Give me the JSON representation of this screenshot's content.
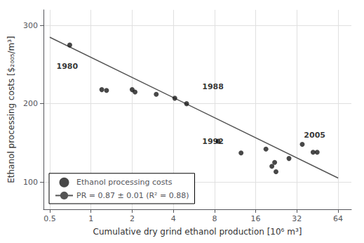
{
  "chart_data": {
    "type": "scatter",
    "xlabel": "Cumulative dry grind ethanol production [10⁶ m³]",
    "ylabel": "Ethanol processing costs [$₂₀₀₅/m³]",
    "log": "x",
    "xlim": [
      0.45,
      80
    ],
    "xticks": [
      0.5,
      1,
      2,
      4,
      8,
      16,
      32,
      64
    ],
    "ylim": [
      65,
      320
    ],
    "yticks": [
      100,
      200,
      300
    ],
    "grid": true,
    "legend": "lower left",
    "series": [
      {
        "name": "Ethanol processing costs",
        "type": "scatter",
        "marker": "circle",
        "color": "#1a1a1a",
        "x": [
          0.7,
          1.2,
          1.3,
          2.0,
          2.1,
          3.0,
          4.1,
          5.0,
          8.5,
          12.5,
          19.0,
          21.0,
          22.0,
          22.5,
          28.0,
          35.0,
          42.0,
          45.0
        ],
        "values": [
          275,
          218,
          217,
          218,
          215,
          212,
          207,
          200,
          152,
          137,
          142,
          120,
          125,
          113,
          130,
          148,
          138,
          138
        ]
      },
      {
        "name": "PR = 0.87 ± 0.01 (R² = 0.88)",
        "type": "line",
        "color": "#555555",
        "x": [
          0.5,
          64
        ],
        "values": [
          285,
          105
        ]
      }
    ],
    "annotations": [
      {
        "text": "1980",
        "x": 0.56,
        "y": 248
      },
      {
        "text": "1988",
        "x": 6.5,
        "y": 222
      },
      {
        "text": "1992",
        "x": 6.5,
        "y": 152
      },
      {
        "text": "2005",
        "x": 36.0,
        "y": 160
      }
    ]
  }
}
